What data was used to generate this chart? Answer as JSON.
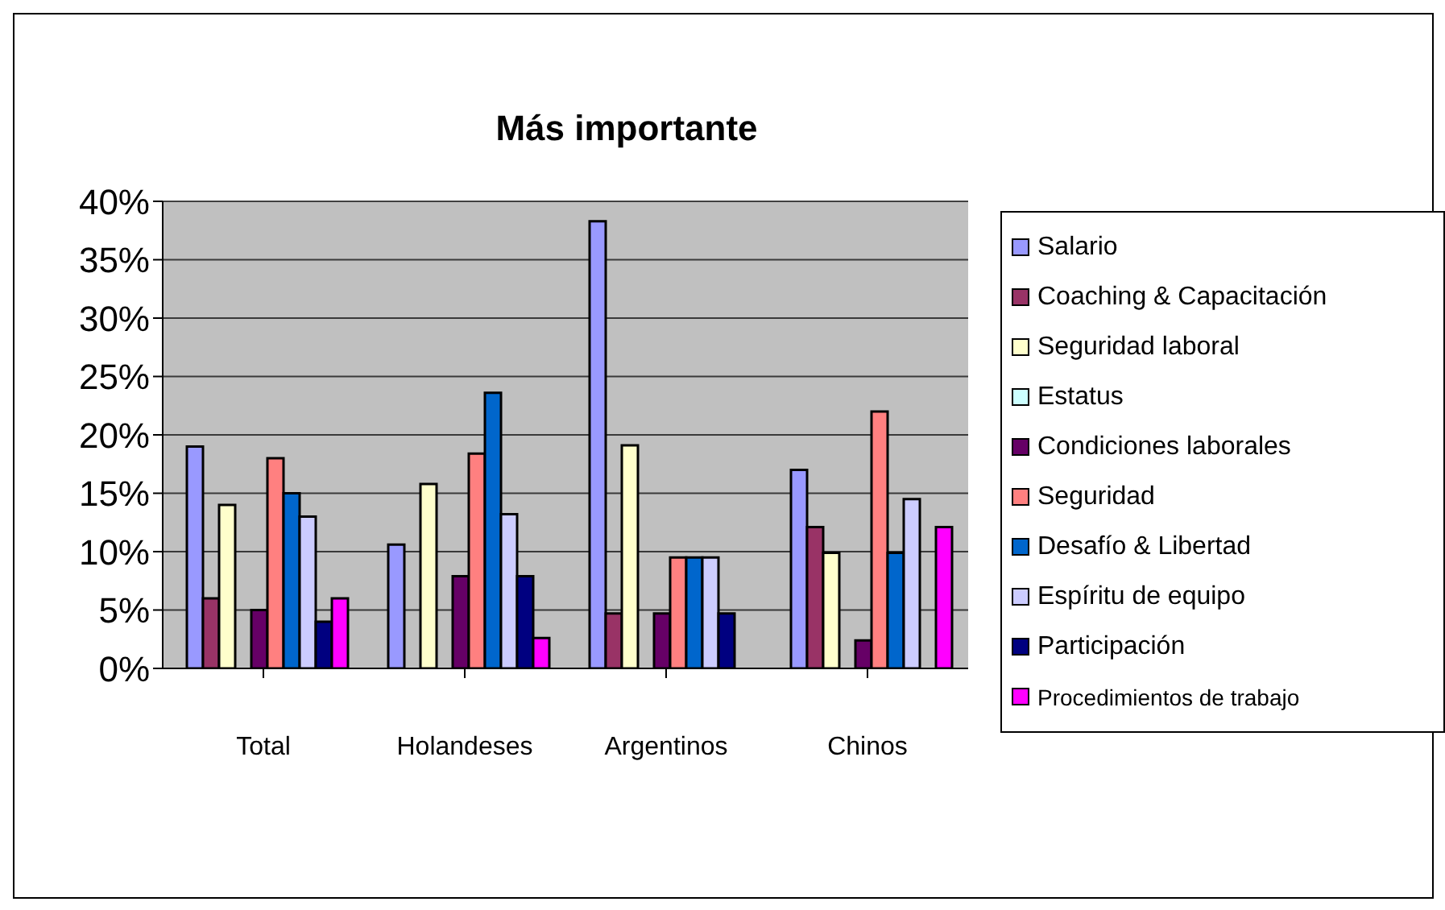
{
  "chart_data": {
    "type": "bar",
    "title": "Más importante",
    "categories": [
      "Total",
      "Holandeses",
      "Argentinos",
      "Chinos"
    ],
    "series": [
      {
        "name": "Salario",
        "color": "#9999ff",
        "values": [
          19,
          10.6,
          38.3,
          17
        ]
      },
      {
        "name": "Coaching & Capacitación",
        "color": "#993366",
        "values": [
          6,
          0,
          4.7,
          12.1
        ]
      },
      {
        "name": "Seguridad laboral",
        "color": "#ffffcc",
        "values": [
          14,
          15.8,
          19.1,
          9.9
        ]
      },
      {
        "name": "Estatus",
        "color": "#ccffff",
        "values": [
          0,
          0,
          0,
          0
        ]
      },
      {
        "name": "Condiciones laborales",
        "color": "#660066",
        "values": [
          5,
          7.9,
          4.7,
          2.4
        ]
      },
      {
        "name": "Seguridad",
        "color": "#ff8080",
        "values": [
          18,
          18.4,
          9.5,
          22
        ]
      },
      {
        "name": "Desafío & Libertad",
        "color": "#0066cc",
        "values": [
          15,
          23.6,
          9.5,
          9.9
        ]
      },
      {
        "name": "Espíritu de equipo",
        "color": "#ccccff",
        "values": [
          13,
          13.2,
          9.5,
          14.5
        ]
      },
      {
        "name": "Participación",
        "color": "#000080",
        "values": [
          4,
          7.9,
          4.7,
          0
        ]
      },
      {
        "name": "Procedimientos de trabajo",
        "color": "#ff00ff",
        "values": [
          6,
          2.6,
          0,
          12.1
        ]
      }
    ],
    "ylim": [
      0,
      40
    ],
    "yticks": [
      {
        "value": 0,
        "label": "0%"
      },
      {
        "value": 5,
        "label": "5%"
      },
      {
        "value": 10,
        "label": "10%"
      },
      {
        "value": 15,
        "label": "15%"
      },
      {
        "value": 20,
        "label": "20%"
      },
      {
        "value": 25,
        "label": "25%"
      },
      {
        "value": 30,
        "label": "30%"
      },
      {
        "value": 35,
        "label": "35%"
      },
      {
        "value": 40,
        "label": "40%"
      }
    ],
    "grid": "y",
    "legend": "right"
  }
}
